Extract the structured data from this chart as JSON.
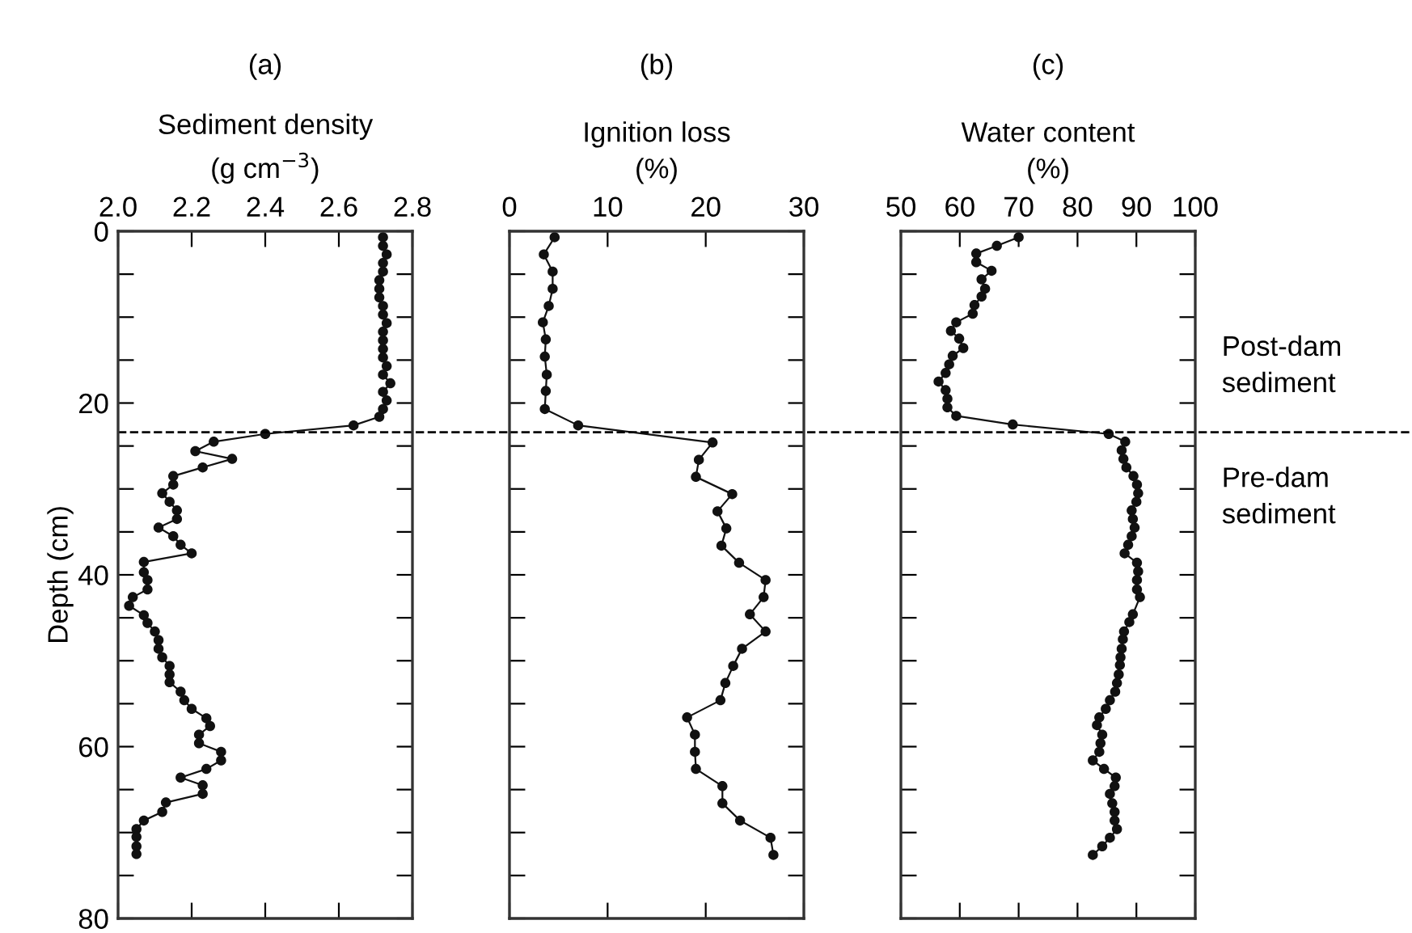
{
  "chart_data": [
    {
      "type": "line",
      "title": "(a)",
      "xlabel": "Sediment density\n(g cm$^{−3}$)",
      "ylabel": "Depth (cm)",
      "xlim": [
        2.0,
        2.8
      ],
      "xticks": [
        {
          "value": 2.0,
          "label": "2.0"
        },
        2.2,
        2.4,
        2.6,
        2.8
      ],
      "ylim": [
        80,
        0
      ],
      "yticks": [
        0,
        {
          "value": 5,
          "label": null
        },
        {
          "value": 10,
          "label": null
        },
        {
          "value": 15,
          "label": null
        },
        20,
        {
          "value": 25,
          "label": null
        },
        {
          "value": 30,
          "label": null
        },
        {
          "value": 35,
          "label": null
        },
        40,
        {
          "value": 45,
          "label": null
        },
        {
          "value": 50,
          "label": null
        },
        {
          "value": 55,
          "label": null
        },
        60,
        {
          "value": 65,
          "label": null
        },
        {
          "value": 70,
          "label": null
        },
        {
          "value": 75,
          "label": null
        },
        80
      ],
      "marker": "circle",
      "line_style": "solid",
      "grid": false,
      "legend": false,
      "ref_lines": [
        {
          "axis": "y",
          "value": 23.4,
          "line_style": "dashed",
          "color": "#000000"
        }
      ],
      "series": [
        {
          "color": "#111111",
          "x": [
            2.72,
            2.72,
            2.73,
            2.72,
            2.72,
            2.71,
            2.71,
            2.71,
            2.72,
            2.72,
            2.73,
            2.72,
            2.72,
            2.72,
            2.72,
            2.73,
            2.72,
            2.74,
            2.72,
            2.73,
            2.72,
            2.71,
            2.64,
            2.4,
            2.26,
            2.21,
            2.31,
            2.23,
            2.15,
            2.15,
            2.12,
            2.14,
            2.16,
            2.16,
            2.11,
            2.15,
            2.17,
            2.2,
            2.07,
            2.07,
            2.08,
            2.08,
            2.04,
            2.03,
            2.07,
            2.08,
            2.1,
            2.11,
            2.11,
            2.12,
            2.14,
            2.14,
            2.14,
            2.17,
            2.18,
            2.2,
            2.24,
            2.25,
            2.22,
            2.22,
            2.28,
            2.28,
            2.24,
            2.17,
            2.23,
            2.23,
            2.13,
            2.12,
            2.07,
            2.05,
            2.05,
            2.05,
            2.05
          ],
          "values": [
            0.7,
            1.7,
            2.7,
            3.7,
            4.7,
            5.7,
            6.7,
            7.7,
            8.7,
            9.7,
            10.7,
            11.7,
            12.7,
            13.7,
            14.7,
            15.7,
            16.7,
            17.7,
            18.7,
            19.7,
            20.7,
            21.6,
            22.6,
            23.6,
            24.5,
            25.6,
            26.5,
            27.5,
            28.5,
            29.5,
            30.5,
            31.5,
            32.5,
            33.5,
            34.5,
            35.5,
            36.5,
            37.5,
            38.5,
            39.7,
            40.6,
            41.7,
            42.6,
            43.6,
            44.7,
            45.6,
            46.6,
            47.6,
            48.6,
            49.6,
            50.6,
            51.6,
            52.5,
            53.6,
            54.6,
            55.6,
            56.7,
            57.6,
            58.6,
            59.6,
            60.6,
            61.6,
            62.6,
            63.6,
            64.5,
            65.5,
            66.5,
            67.6,
            68.6,
            69.6,
            70.5,
            71.6,
            72.5
          ]
        }
      ]
    },
    {
      "type": "line",
      "title": "(b)",
      "xlabel": "Ignition loss\n(%)",
      "xlim": [
        0,
        30
      ],
      "xticks": [
        0,
        10,
        20,
        30
      ],
      "ylim": [
        80,
        0
      ],
      "yticks": [
        {
          "value": 0,
          "label": null
        },
        {
          "value": 5,
          "label": null
        },
        {
          "value": 10,
          "label": null
        },
        {
          "value": 15,
          "label": null
        },
        {
          "value": 20,
          "label": null
        },
        {
          "value": 25,
          "label": null
        },
        {
          "value": 30,
          "label": null
        },
        {
          "value": 35,
          "label": null
        },
        {
          "value": 40,
          "label": null
        },
        {
          "value": 45,
          "label": null
        },
        {
          "value": 50,
          "label": null
        },
        {
          "value": 55,
          "label": null
        },
        {
          "value": 60,
          "label": null
        },
        {
          "value": 65,
          "label": null
        },
        {
          "value": 70,
          "label": null
        },
        {
          "value": 75,
          "label": null
        },
        {
          "value": 80,
          "label": null
        }
      ],
      "tick_labels": "x",
      "marker": "circle",
      "line_style": "solid",
      "grid": false,
      "legend": false,
      "ref_lines": [
        {
          "axis": "y",
          "value": 23.4,
          "line_style": "dashed",
          "color": "#000000"
        }
      ],
      "series": [
        {
          "color": "#111111",
          "x": [
            4.6,
            3.5,
            4.4,
            4.4,
            4.0,
            3.4,
            3.7,
            3.6,
            3.8,
            3.7,
            3.6,
            7.0,
            20.7,
            19.3,
            19.0,
            22.7,
            21.2,
            22.1,
            21.6,
            23.4,
            26.1,
            25.9,
            24.5,
            26.1,
            23.7,
            22.8,
            22.0,
            21.5,
            18.1,
            18.9,
            18.9,
            19.0,
            21.7,
            21.7,
            23.5,
            26.6,
            26.9
          ],
          "values": [
            0.7,
            2.7,
            4.7,
            6.7,
            8.7,
            10.6,
            12.6,
            14.6,
            16.7,
            18.6,
            20.7,
            22.6,
            24.6,
            26.6,
            28.6,
            30.6,
            32.6,
            34.6,
            36.6,
            38.6,
            40.6,
            42.6,
            44.6,
            46.6,
            48.6,
            50.6,
            52.6,
            54.6,
            56.6,
            58.6,
            60.6,
            62.6,
            64.6,
            66.6,
            68.6,
            70.6,
            72.6
          ]
        }
      ]
    },
    {
      "type": "line",
      "title": "(c)",
      "xlabel": "Water content\n(%)",
      "xlim": [
        50,
        100
      ],
      "xticks": [
        50,
        60,
        70,
        80,
        90,
        100
      ],
      "ylim": [
        80,
        0
      ],
      "yticks": [
        {
          "value": 0,
          "label": null
        },
        {
          "value": 5,
          "label": null
        },
        {
          "value": 10,
          "label": null
        },
        {
          "value": 15,
          "label": null
        },
        {
          "value": 20,
          "label": null
        },
        {
          "value": 25,
          "label": null
        },
        {
          "value": 30,
          "label": null
        },
        {
          "value": 35,
          "label": null
        },
        {
          "value": 40,
          "label": null
        },
        {
          "value": 45,
          "label": null
        },
        {
          "value": 50,
          "label": null
        },
        {
          "value": 55,
          "label": null
        },
        {
          "value": 60,
          "label": null
        },
        {
          "value": 65,
          "label": null
        },
        {
          "value": 70,
          "label": null
        },
        {
          "value": 75,
          "label": null
        },
        {
          "value": 80,
          "label": null
        }
      ],
      "tick_labels": "x",
      "marker": "circle",
      "line_style": "solid",
      "grid": false,
      "legend": false,
      "ref_lines": [
        {
          "axis": "y",
          "value": 23.4,
          "line_style": "dashed",
          "color": "#000000"
        }
      ],
      "annotations": [
        "Post-dam\nsediment",
        "Pre-dam\nsediment"
      ],
      "series": [
        {
          "color": "#111111",
          "x": [
            70.0,
            66.3,
            62.8,
            62.8,
            65.4,
            63.7,
            64.3,
            63.7,
            62.5,
            62.2,
            59.4,
            58.5,
            59.9,
            60.6,
            58.8,
            58.2,
            57.6,
            56.4,
            57.6,
            57.9,
            57.9,
            59.4,
            69.0,
            85.3,
            88.1,
            87.5,
            87.8,
            88.3,
            89.5,
            90.1,
            90.3,
            90.0,
            89.2,
            89.4,
            89.7,
            89.2,
            88.6,
            88.0,
            90.1,
            90.3,
            90.1,
            90.1,
            90.6,
            89.4,
            88.8,
            87.9,
            87.7,
            87.5,
            87.3,
            87.2,
            87.0,
            86.7,
            86.4,
            85.5,
            84.8,
            83.7,
            83.3,
            84.2,
            83.9,
            83.7,
            82.6,
            84.5,
            86.5,
            86.3,
            85.5,
            85.9,
            86.3,
            86.3,
            86.7,
            85.5,
            84.2,
            82.6
          ],
          "values": [
            0.7,
            1.7,
            2.6,
            3.6,
            4.6,
            5.6,
            6.7,
            7.6,
            8.6,
            9.6,
            10.6,
            11.6,
            12.5,
            13.6,
            14.5,
            15.5,
            16.5,
            17.5,
            18.5,
            19.5,
            20.5,
            21.5,
            22.5,
            23.6,
            24.5,
            25.5,
            26.5,
            27.5,
            28.5,
            29.5,
            30.5,
            31.5,
            32.5,
            33.5,
            34.5,
            35.5,
            36.5,
            37.5,
            38.6,
            39.6,
            40.6,
            41.7,
            42.6,
            44.6,
            45.5,
            46.6,
            47.5,
            48.6,
            49.6,
            50.5,
            51.6,
            52.6,
            53.6,
            54.6,
            55.6,
            56.6,
            57.5,
            58.6,
            59.6,
            60.6,
            61.6,
            62.6,
            63.6,
            64.6,
            65.5,
            66.6,
            67.6,
            68.6,
            69.6,
            70.6,
            71.6,
            72.6
          ]
        }
      ]
    }
  ]
}
